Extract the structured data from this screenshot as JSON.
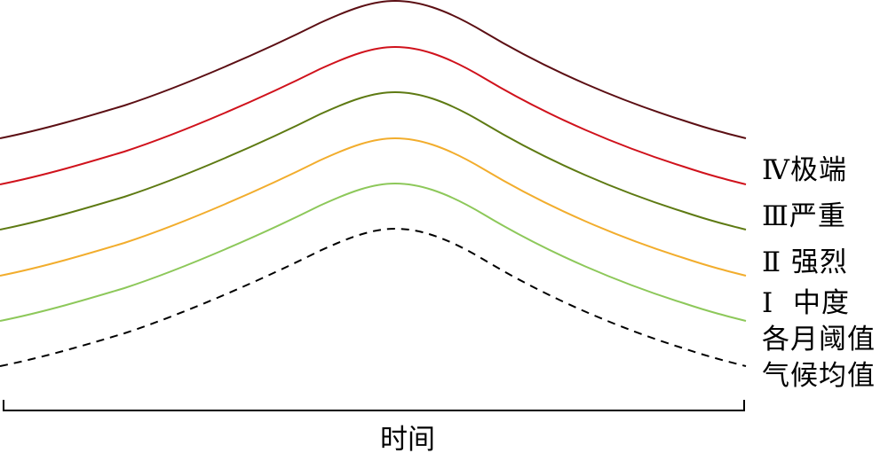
{
  "diagram": {
    "x_axis_label": "时间",
    "curves": [
      {
        "key": "level4",
        "label": "Ⅳ极端",
        "color": "#5c0f14",
        "dashed": false
      },
      {
        "key": "level3",
        "label": "Ⅲ严重",
        "color": "#d0121c",
        "dashed": false
      },
      {
        "key": "level2",
        "label": "Ⅱ 强烈",
        "color": "#5e7a13",
        "dashed": false
      },
      {
        "key": "level1",
        "label": "Ⅰ  中度",
        "color": "#f2ad2d",
        "dashed": false
      },
      {
        "key": "monthly_threshold",
        "label": "各月阈值",
        "color": "#8dc85a",
        "dashed": false
      },
      {
        "key": "climate_mean",
        "label": "气候均值",
        "color": "#000000",
        "dashed": true
      }
    ]
  }
}
